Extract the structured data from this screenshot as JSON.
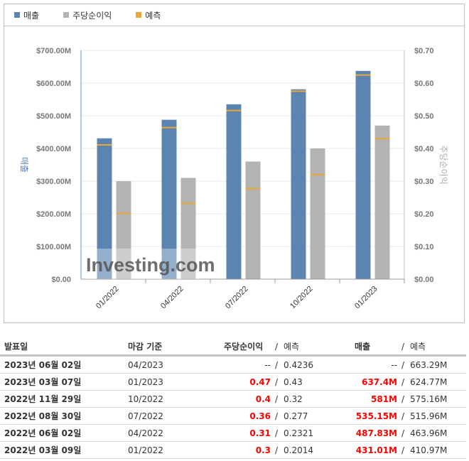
{
  "legend": {
    "revenue": "매출",
    "eps": "주당순이익",
    "forecast": "예측"
  },
  "colors": {
    "revenue": "#5b84b1",
    "eps": "#b3b3b3",
    "forecast": "#e8a838",
    "beat": "#ff0000"
  },
  "watermark": "Investing.com",
  "chart_data": {
    "type": "bar",
    "categories": [
      "01/2022",
      "04/2022",
      "07/2022",
      "10/2022",
      "01/2023"
    ],
    "series": [
      {
        "name": "매출",
        "axis": "left",
        "values": [
          431.01,
          487.83,
          535.15,
          581,
          637.4
        ],
        "forecast": [
          410.97,
          463.96,
          515.96,
          575.16,
          624.77
        ]
      },
      {
        "name": "주당순이익",
        "axis": "right",
        "values": [
          0.3,
          0.31,
          0.36,
          0.4,
          0.47
        ],
        "forecast": [
          0.2014,
          0.2321,
          0.277,
          0.32,
          0.43
        ]
      }
    ],
    "ylabel": "매출",
    "y2label": "주당순이익",
    "ylim": [
      0,
      700
    ],
    "y2lim": [
      0,
      0.7
    ],
    "yticks": [
      "$0.00",
      "$100.00M",
      "$200.00M",
      "$300.00M",
      "$400.00M",
      "$500.00M",
      "$600.00M",
      "$700.00M"
    ],
    "y2ticks": [
      "$0.00",
      "$0.10",
      "$0.20",
      "$0.30",
      "$0.40",
      "$0.50",
      "$0.60",
      "$0.70"
    ],
    "grid": true,
    "legend": "top-left"
  },
  "table": {
    "headers": {
      "date": "발표일",
      "period": "마감 기준",
      "eps": "주당순이익",
      "forecast": "예측",
      "revenue": "매출",
      "slash": "/"
    },
    "rows": [
      {
        "date": "2023년 06월 02일",
        "period": "04/2023",
        "eps": "--",
        "eps_f": "0.4236",
        "rev": "--",
        "rev_f": "663.29M"
      },
      {
        "date": "2023년 03월 07일",
        "period": "01/2023",
        "eps": "0.47",
        "eps_f": "0.43",
        "rev": "637.4M",
        "rev_f": "624.77M"
      },
      {
        "date": "2022년 11월 29일",
        "period": "10/2022",
        "eps": "0.4",
        "eps_f": "0.32",
        "rev": "581M",
        "rev_f": "575.16M"
      },
      {
        "date": "2022년 08월 30일",
        "period": "07/2022",
        "eps": "0.36",
        "eps_f": "0.277",
        "rev": "535.15M",
        "rev_f": "515.96M"
      },
      {
        "date": "2022년 06월 02일",
        "period": "04/2022",
        "eps": "0.31",
        "eps_f": "0.2321",
        "rev": "487.83M",
        "rev_f": "463.96M"
      },
      {
        "date": "2022년 03월 09일",
        "period": "01/2022",
        "eps": "0.3",
        "eps_f": "0.2014",
        "rev": "431.01M",
        "rev_f": "410.97M"
      }
    ]
  }
}
